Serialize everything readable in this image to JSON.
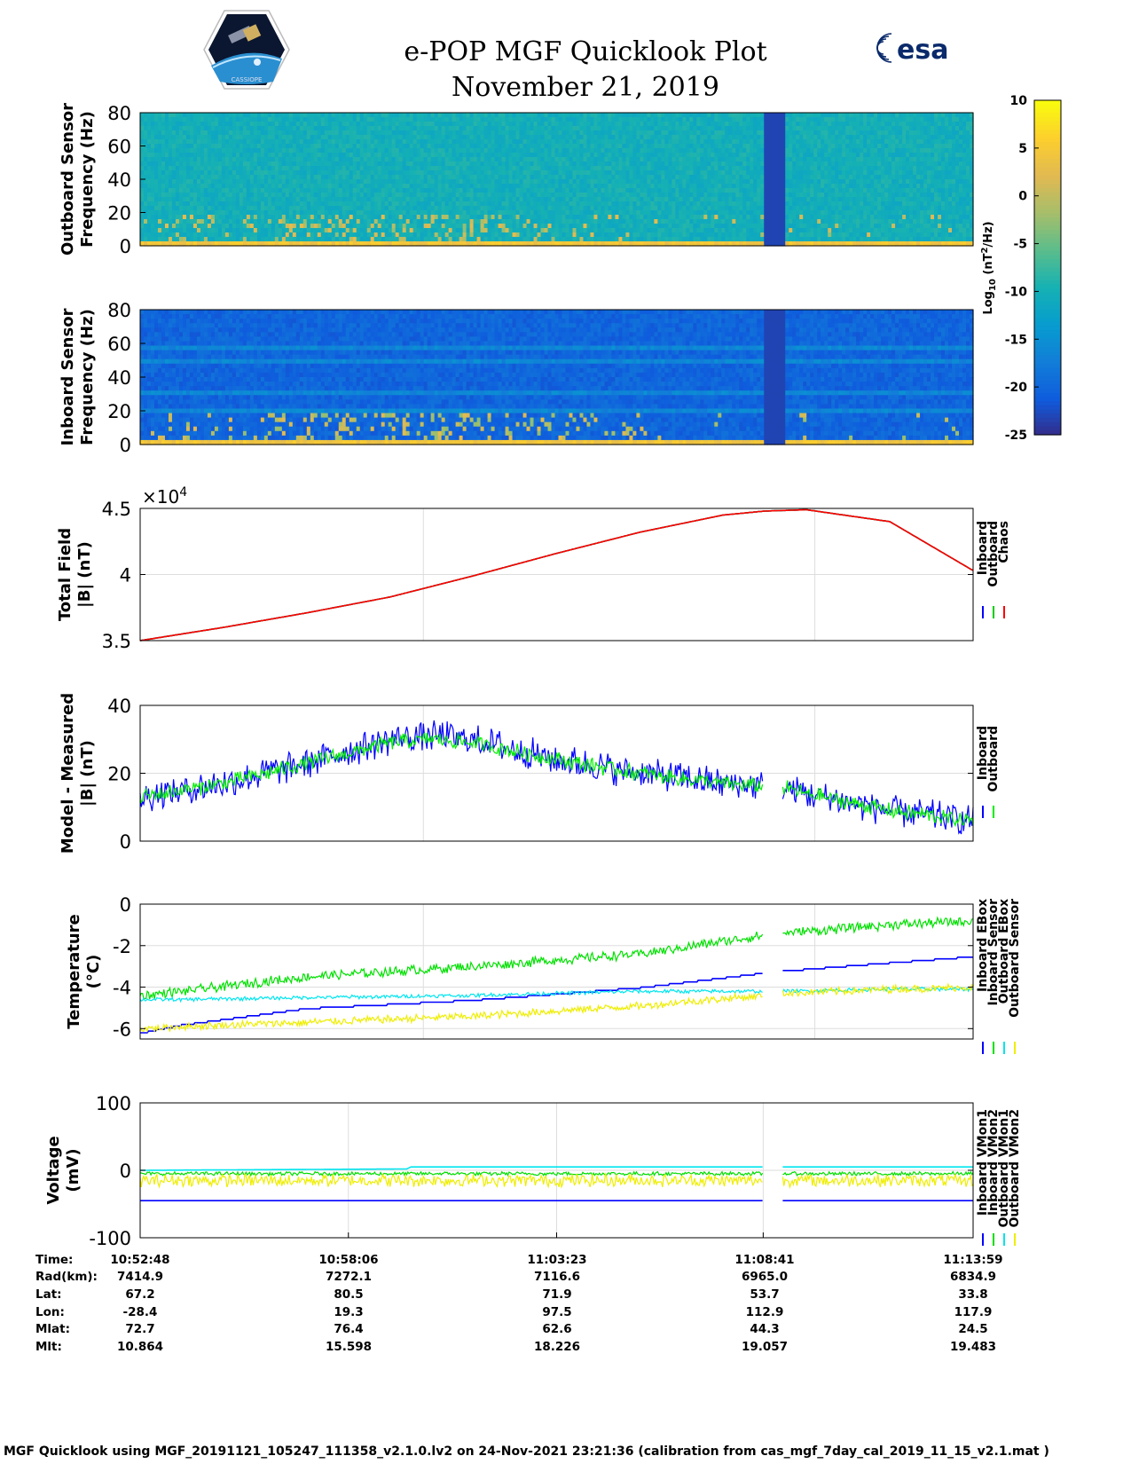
{
  "header": {
    "title": "e-POP MGF Quicklook Plot",
    "date": "November 21, 2019",
    "left_logo_text": "CASSIOPE",
    "right_logo_text": "esa"
  },
  "colorbar": {
    "label_main": "Log",
    "label_sub": "10",
    "label_unit": " (nT",
    "label_sup": "2",
    "label_end": "/Hz)",
    "ticks": [
      "10",
      "5",
      "0",
      "-5",
      "-10",
      "-15",
      "-20",
      "-25"
    ],
    "tick_values": [
      10,
      5,
      0,
      -5,
      -10,
      -15,
      -20,
      -25
    ],
    "range": [
      -25,
      10
    ]
  },
  "chart_data": [
    {
      "id": "outboard-spectrogram",
      "type": "heatmap",
      "ylabel_line1": "Outboard Sensor",
      "ylabel_line2": "Frequency (Hz)",
      "ylim": [
        0,
        80
      ],
      "yticks": [
        0,
        20,
        40,
        60,
        80
      ],
      "background_level": -10,
      "low_freq_level": 5,
      "gap": [
        0.748,
        0.771
      ]
    },
    {
      "id": "inboard-spectrogram",
      "type": "heatmap",
      "ylabel_line1": "Inboard Sensor",
      "ylabel_line2": "Frequency (Hz)",
      "ylim": [
        0,
        80
      ],
      "yticks": [
        0,
        20,
        40,
        60,
        80
      ],
      "background_level": -20,
      "low_freq_level": 5,
      "gap": [
        0.748,
        0.771
      ]
    },
    {
      "id": "total-field",
      "type": "line",
      "ylabel_line1": "Total Field",
      "ylabel_line2": "|B| (nT)",
      "exponent_label": "×10",
      "exponent_power": "4",
      "ylim": [
        3.5,
        4.5
      ],
      "yticks": [
        "3.5",
        "4",
        "4.5"
      ],
      "ytick_values": [
        3.5,
        4,
        4.5
      ],
      "x": [
        0,
        0.1,
        0.2,
        0.3,
        0.4,
        0.5,
        0.6,
        0.7,
        0.75,
        0.8,
        0.9,
        1.0
      ],
      "series": [
        {
          "name": "Inboard",
          "color": "#0000ff",
          "values": [
            3.5,
            3.6,
            3.71,
            3.83,
            3.99,
            4.16,
            4.32,
            4.45,
            4.48,
            4.49,
            4.4,
            4.03
          ]
        },
        {
          "name": "Outboard",
          "color": "#00cc00",
          "values": [
            3.5,
            3.6,
            3.71,
            3.83,
            3.99,
            4.16,
            4.32,
            4.45,
            4.48,
            4.49,
            4.4,
            4.03
          ]
        },
        {
          "name": "Chaos",
          "color": "#ff0000",
          "values": [
            3.5,
            3.6,
            3.71,
            3.83,
            3.99,
            4.16,
            4.32,
            4.45,
            4.48,
            4.49,
            4.4,
            4.03
          ]
        }
      ]
    },
    {
      "id": "model-measured",
      "type": "line",
      "ylabel_line1": "Model - Measured",
      "ylabel_line2": "|B| (nT)",
      "ylim": [
        0,
        40
      ],
      "yticks": [
        "0",
        "20",
        "40"
      ],
      "ytick_values": [
        0,
        20,
        40
      ],
      "gap": [
        0.748,
        0.771
      ],
      "x": [
        0,
        0.1,
        0.2,
        0.3,
        0.35,
        0.4,
        0.5,
        0.6,
        0.7,
        0.748,
        0.771,
        0.8,
        0.9,
        1.0
      ],
      "series": [
        {
          "name": "Inboard",
          "color": "#0000ff",
          "values": [
            13,
            17,
            23,
            30,
            31,
            30,
            24,
            20,
            17,
            16,
            16,
            14,
            9,
            6
          ],
          "noise": 5
        },
        {
          "name": "Outboard",
          "color": "#00ee00",
          "values": [
            13,
            17,
            23,
            29,
            30,
            29,
            24,
            20,
            17,
            16,
            16,
            14,
            9,
            6
          ],
          "noise": 2.5
        }
      ]
    },
    {
      "id": "temperature",
      "type": "line",
      "ylabel_line1": "Temperature",
      "ylabel_line2": "(°C)",
      "ylim": [
        -6.5,
        0
      ],
      "yticks": [
        "0",
        "-2",
        "-4",
        "-6"
      ],
      "ytick_values": [
        0,
        -2,
        -4,
        -6
      ],
      "gap": [
        0.748,
        0.771
      ],
      "x": [
        0,
        0.05,
        0.2,
        0.4,
        0.6,
        0.748,
        0.771,
        0.9,
        1.0
      ],
      "series": [
        {
          "name": "Inboard EBox",
          "color": "#0000ff",
          "values": [
            -6.2,
            -5.8,
            -5.0,
            -4.6,
            -4.0,
            -3.3,
            -3.2,
            -2.8,
            -2.5
          ],
          "step": true
        },
        {
          "name": "Inboard Sensor",
          "color": "#00e000",
          "values": [
            -4.4,
            -4.2,
            -3.5,
            -3.0,
            -2.4,
            -1.5,
            -1.4,
            -1.0,
            -0.8
          ],
          "noise": 0.25
        },
        {
          "name": "Outboard EBox",
          "color": "#00e5ee",
          "values": [
            -4.6,
            -4.6,
            -4.5,
            -4.4,
            -4.2,
            -4.2,
            -4.2,
            -4.1,
            -4.1
          ],
          "noise": 0.1
        },
        {
          "name": "Outboard Sensor",
          "color": "#eeee00",
          "values": [
            -6.0,
            -5.9,
            -5.7,
            -5.4,
            -4.9,
            -4.4,
            -4.3,
            -4.1,
            -4.0
          ],
          "noise": 0.2
        }
      ]
    },
    {
      "id": "voltage",
      "type": "line",
      "ylabel_line1": "Voltage",
      "ylabel_line2": "(mV)",
      "ylim": [
        -100,
        100
      ],
      "yticks": [
        "100",
        "0",
        "-100"
      ],
      "ytick_values": [
        100,
        0,
        -100
      ],
      "gap": [
        0.748,
        0.771
      ],
      "x": [
        0,
        0.32,
        0.325,
        0.748,
        0.771,
        1.0
      ],
      "series": [
        {
          "name": "Inboard VMon1",
          "color": "#0000ff",
          "values": [
            -45,
            -45,
            -45,
            -46,
            -46,
            -46
          ],
          "step": true
        },
        {
          "name": "Inboard VMon2",
          "color": "#00dd00",
          "values": [
            -5,
            -5,
            -5,
            -5,
            -5,
            -5
          ],
          "noise": 3
        },
        {
          "name": "Outboard VMon1",
          "color": "#00e5ee",
          "values": [
            0,
            2,
            5,
            5,
            5,
            5
          ]
        },
        {
          "name": "Outboard VMon2",
          "color": "#eeee00",
          "values": [
            -15,
            -15,
            -15,
            -15,
            -15,
            -15
          ],
          "noise": 10
        }
      ]
    }
  ],
  "orbit_table": {
    "labels": [
      "Time:",
      "Rad(km):",
      "Lat:",
      "Lon:",
      "Mlat:",
      "Mlt:"
    ],
    "columns": [
      {
        "values": [
          "10:52:48",
          "7414.9",
          "67.2",
          "-28.4",
          "72.7",
          "10.864"
        ]
      },
      {
        "values": [
          "10:58:06",
          "7272.1",
          "80.5",
          "19.3",
          "76.4",
          "15.598"
        ]
      },
      {
        "values": [
          "11:03:23",
          "7116.6",
          "71.9",
          "97.5",
          "62.6",
          "18.226"
        ]
      },
      {
        "values": [
          "11:08:41",
          "6965.0",
          "53.7",
          "112.9",
          "44.3",
          "19.057"
        ]
      },
      {
        "values": [
          "11:13:59",
          "6834.9",
          "33.8",
          "117.9",
          "24.5",
          "19.483"
        ]
      }
    ]
  },
  "footer": {
    "text": "MGF Quicklook using MGF_20191121_105247_111358_v2.1.0.lv2 on 24-Nov-2021 23:21:36 (calibration from cas_mgf_7day_cal_2019_11_15_v2.1.mat )"
  }
}
